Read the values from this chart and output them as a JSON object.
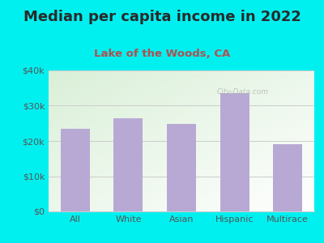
{
  "title": "Median per capita income in 2022",
  "subtitle": "Lake of the Woods, CA",
  "categories": [
    "All",
    "White",
    "Asian",
    "Hispanic",
    "Multirace"
  ],
  "values": [
    23500,
    26500,
    24800,
    33500,
    19000
  ],
  "bar_color": "#b8a9d4",
  "background_outer": "#00f0f0",
  "background_inner_top_left": "#daf0d8",
  "background_inner_bottom_right": "#ffffff",
  "title_color": "#2a2a2a",
  "subtitle_color": "#b05050",
  "tick_color": "#555555",
  "grid_color": "#cccccc",
  "ylim": [
    0,
    40000
  ],
  "yticks": [
    0,
    10000,
    20000,
    30000,
    40000
  ],
  "ytick_labels": [
    "$0",
    "$10k",
    "$20k",
    "$30k",
    "$40k"
  ],
  "watermark": "City-Data.com",
  "title_fontsize": 13,
  "subtitle_fontsize": 9.5,
  "tick_fontsize": 8
}
